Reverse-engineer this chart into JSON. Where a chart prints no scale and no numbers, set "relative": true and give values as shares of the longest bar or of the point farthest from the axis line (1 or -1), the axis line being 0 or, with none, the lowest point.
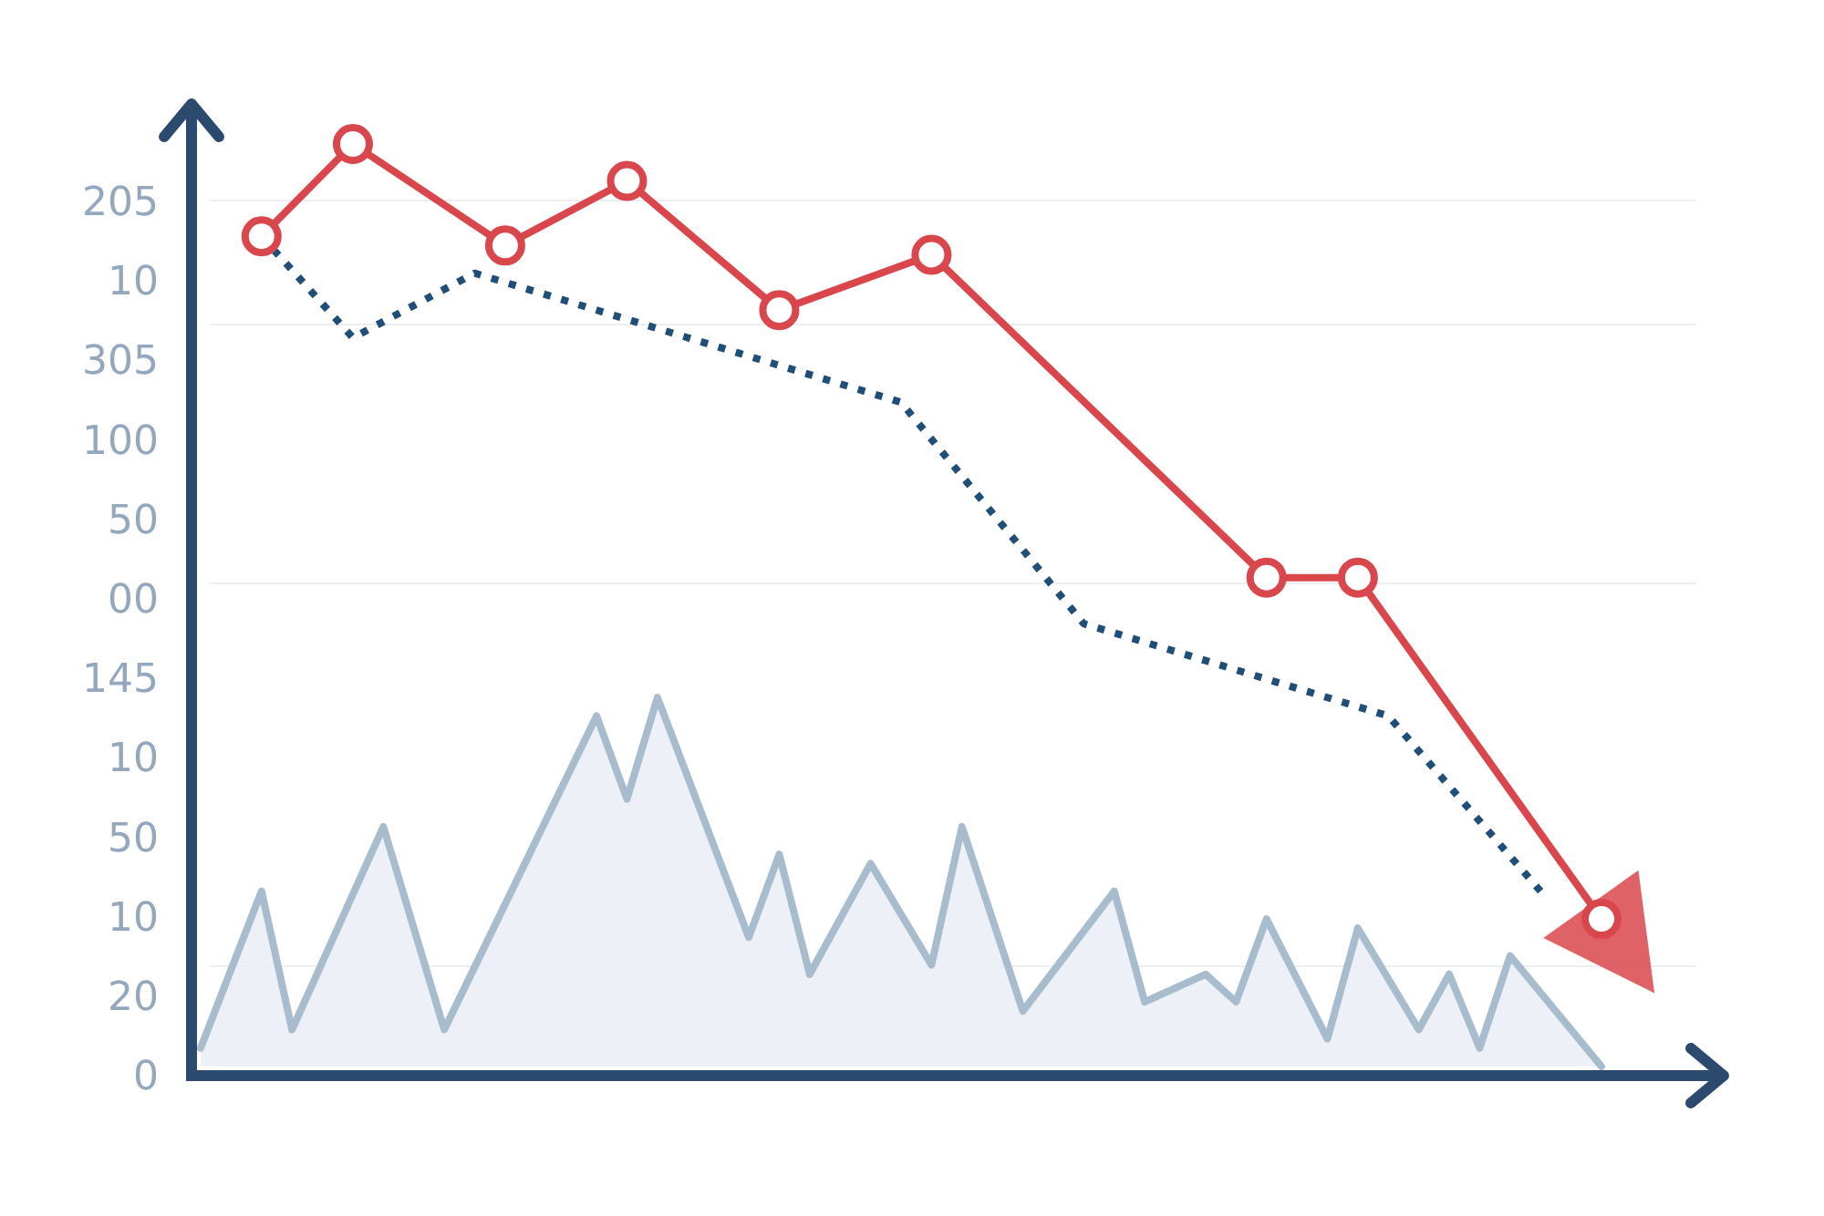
{
  "chart_data": {
    "type": "line",
    "relative": true,
    "categories": [
      null,
      null,
      null,
      null,
      null,
      null,
      null,
      null,
      null,
      null,
      null,
      null,
      null,
      null,
      null,
      null,
      null,
      null,
      null,
      null,
      null,
      null,
      null,
      null,
      null,
      null,
      null,
      null,
      null,
      null,
      null,
      null,
      null,
      null,
      null,
      null,
      null,
      null,
      null,
      null,
      null,
      null,
      null,
      null,
      null,
      null,
      null
    ],
    "annotations": [
      "205",
      "10",
      "305",
      "100",
      "50",
      "00",
      "145",
      "10",
      "50",
      "10",
      "20",
      "0"
    ],
    "series": [
      {
        "type": "area",
        "color": "#a7bccd",
        "values": [
          0.02,
          null,
          0.19,
          0.04,
          null,
          null,
          0.26,
          null,
          0.04,
          null,
          null,
          null,
          null,
          0.38,
          0.29,
          0.4,
          null,
          null,
          0.14,
          0.23,
          0.1,
          null,
          0.22,
          null,
          0.11,
          0.26,
          null,
          0.06,
          null,
          null,
          0.19,
          0.07,
          null,
          0.1,
          0.07,
          0.16,
          null,
          0.03,
          0.15,
          null,
          0.04,
          0.1,
          0.02,
          0.12,
          null,
          null,
          0
        ]
      },
      {
        "type": "line",
        "color": "#1f4e79",
        "line_style": "dotted",
        "marker": "none",
        "values": [
          null,
          null,
          0.9,
          null,
          null,
          0.79,
          null,
          null,
          null,
          0.86,
          null,
          null,
          null,
          null,
          null,
          null,
          null,
          null,
          null,
          null,
          null,
          null,
          null,
          0.72,
          null,
          null,
          null,
          null,
          null,
          0.48,
          null,
          null,
          null,
          null,
          null,
          null,
          null,
          null,
          null,
          0.38,
          null,
          null,
          null,
          null,
          0.19,
          null,
          null
        ]
      },
      {
        "type": "line",
        "color": "#d9464c",
        "line_style": "solid",
        "marker": "circle",
        "values": [
          null,
          null,
          0.9,
          null,
          null,
          1,
          null,
          null,
          null,
          null,
          0.89,
          null,
          null,
          null,
          0.96,
          null,
          null,
          null,
          null,
          0.82,
          null,
          null,
          null,
          null,
          0.88,
          null,
          null,
          null,
          null,
          null,
          null,
          null,
          null,
          null,
          null,
          0.53,
          null,
          null,
          0.53,
          null,
          null,
          null,
          null,
          null,
          null,
          null,
          0.16
        ]
      }
    ]
  }
}
